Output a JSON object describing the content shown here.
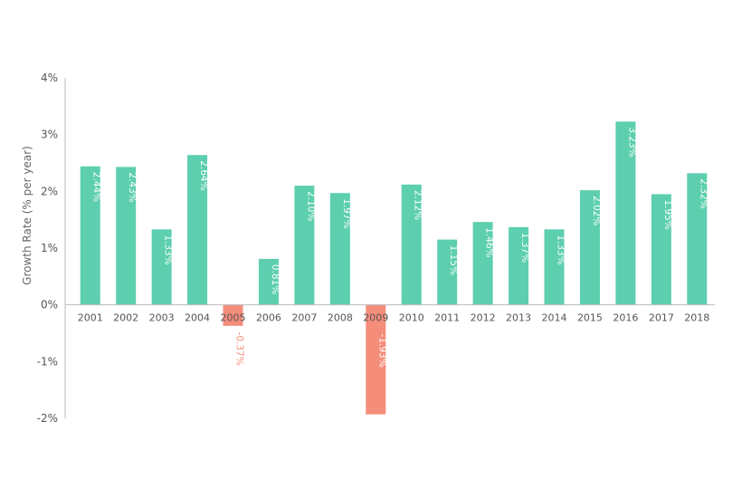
{
  "chart_data": {
    "type": "bar",
    "title": "",
    "xlabel": "",
    "ylabel": "Growth Rate (% per year)",
    "ylim": [
      -2,
      4
    ],
    "yticks": [
      4,
      3,
      2,
      1,
      0,
      -1,
      -2
    ],
    "ytick_labels": [
      "4%",
      "3%",
      "2%",
      "1%",
      "0%",
      "-1%",
      "-2%"
    ],
    "grid": false,
    "categories": [
      "2001",
      "2002",
      "2003",
      "2004",
      "2005",
      "2006",
      "2007",
      "2008",
      "2009",
      "2010",
      "2011",
      "2012",
      "2013",
      "2014",
      "2015",
      "2016",
      "2017",
      "2018"
    ],
    "values": [
      2.44,
      2.43,
      1.33,
      2.64,
      -0.37,
      0.81,
      2.1,
      1.97,
      -1.93,
      2.12,
      1.15,
      1.46,
      1.37,
      1.33,
      2.02,
      3.23,
      1.95,
      2.32
    ],
    "data_labels": [
      "2.44%",
      "2.43%",
      "1.33%",
      "2.64%",
      "-0.37%",
      "0.81%",
      "2.10%",
      "1.97%",
      "-1.93%",
      "2.12%",
      "1.15%",
      "1.46%",
      "1.37%",
      "1.33%",
      "2.02%",
      "3.23%",
      "1.95%",
      "2.32%"
    ],
    "colors": {
      "positive": "#5dcfae",
      "negative": "#f58d7b",
      "positive_label": "#ffffff",
      "negative_label": "#f58d7b",
      "axis": "#bbbbbb"
    }
  }
}
